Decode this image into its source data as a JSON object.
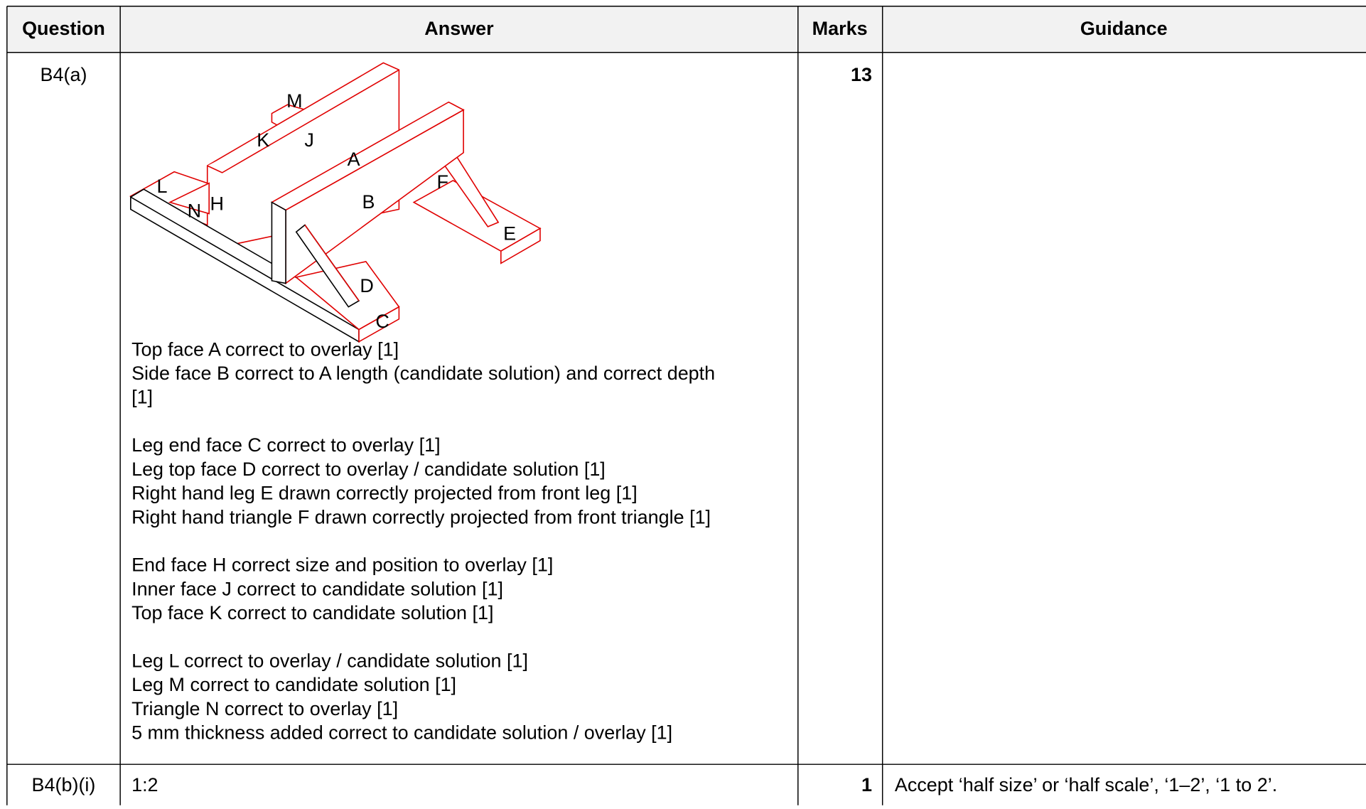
{
  "header": {
    "columns": [
      "Question",
      "Answer",
      "Marks",
      "Guidance"
    ]
  },
  "diagram": {
    "labels": [
      "M",
      "K",
      "J",
      "A",
      "L",
      "F",
      "N",
      "H",
      "B",
      "E",
      "D",
      "C"
    ]
  },
  "rows": [
    {
      "question": "B4(a)",
      "marks": 13,
      "answer_groups": [
        [
          "Top face A correct to overlay [1]",
          "Side face B correct to A length (candidate solution) and correct depth",
          "[1]"
        ],
        [
          "Leg end face C correct to overlay [1]",
          "Leg top face D correct to overlay / candidate solution [1]",
          "Right hand leg E drawn correctly projected from front leg [1]",
          "Right hand triangle F drawn correctly projected from front triangle [1]"
        ],
        [
          "End face H correct size and position to overlay [1]",
          "Inner face J correct to candidate solution [1]",
          "Top face K correct to candidate solution [1]"
        ],
        [
          "Leg L correct to overlay / candidate solution [1]",
          "Leg M correct to candidate solution [1]",
          "Triangle N correct to overlay [1]",
          "5 mm thickness added correct to candidate solution / overlay [1]"
        ]
      ]
    },
    {
      "question": "B4(b)(i)",
      "marks": 1,
      "answer_groups": [
        [
          "1:2"
        ]
      ],
      "guidance": "Accept ‘half size’ or ‘half scale’, ‘1–2’, ‘1 to 2’."
    }
  ]
}
